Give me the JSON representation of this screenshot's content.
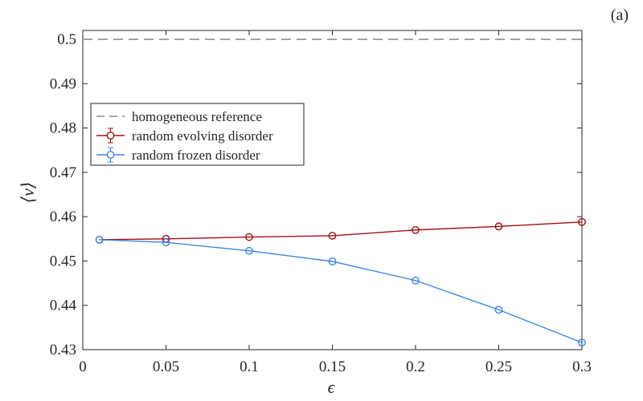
{
  "chart_data": {
    "type": "line",
    "panel_label": "(a)",
    "xlabel": "ϵ",
    "ylabel": "⟨v⟩",
    "xlim": [
      0,
      0.3
    ],
    "ylim": [
      0.43,
      0.502
    ],
    "xticks": [
      0,
      0.05,
      0.1,
      0.15,
      0.2,
      0.25,
      0.3
    ],
    "xtick_labels": [
      "0",
      "0.05",
      "0.1",
      "0.15",
      "0.2",
      "0.25",
      "0.3"
    ],
    "yticks": [
      0.43,
      0.44,
      0.45,
      0.46,
      0.47,
      0.48,
      0.49,
      0.5
    ],
    "ytick_labels": [
      "0.43",
      "0.44",
      "0.45",
      "0.46",
      "0.47",
      "0.48",
      "0.49",
      "0.5"
    ],
    "grid": false,
    "legend_position": "upper-left",
    "series": [
      {
        "name": "homogeneous reference",
        "style": "dashed",
        "marker": "none",
        "color": "#9e9e9e",
        "x": [
          0,
          0.3
        ],
        "y": [
          0.5,
          0.5
        ]
      },
      {
        "name": "random evolving disorder",
        "style": "solid",
        "marker": "circle",
        "color": "#a30f15",
        "x": [
          0.01,
          0.05,
          0.1,
          0.15,
          0.2,
          0.25,
          0.3
        ],
        "y": [
          0.4548,
          0.455,
          0.4554,
          0.4557,
          0.457,
          0.4578,
          0.4588
        ]
      },
      {
        "name": "random frozen disorder",
        "style": "solid",
        "marker": "circle",
        "color": "#3c86e6",
        "x": [
          0.01,
          0.05,
          0.1,
          0.15,
          0.2,
          0.25,
          0.3
        ],
        "y": [
          0.4548,
          0.4542,
          0.4523,
          0.4499,
          0.4456,
          0.439,
          0.4316
        ]
      }
    ]
  }
}
